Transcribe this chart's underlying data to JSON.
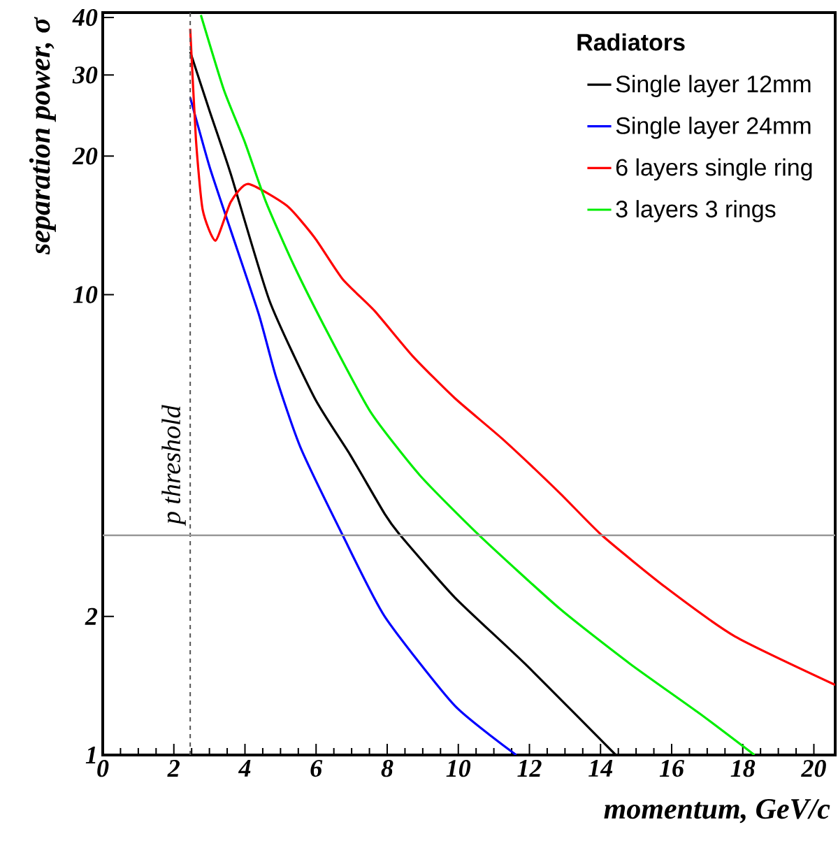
{
  "chart_data": {
    "type": "line",
    "xlabel": "momentum, GeV/c",
    "ylabel": "separation power, σ",
    "legend_title": "Radiators",
    "log": "y",
    "xlim": [
      0,
      20.6
    ],
    "ylim": [
      1,
      41
    ],
    "xticks": [
      0,
      2,
      4,
      6,
      8,
      10,
      12,
      14,
      16,
      18,
      20
    ],
    "yticks": [
      1,
      2,
      10,
      20,
      30,
      40
    ],
    "grid": false,
    "legend": "top right",
    "marker": "none",
    "line_style": "solid",
    "series": [
      {
        "name": "Single layer 12mm",
        "color": "#000000",
        "x": [
          2.46,
          3.01,
          3.6,
          4.69,
          5.96,
          6.95,
          7.93,
          8.37,
          9.9,
          11.87,
          14.43
        ],
        "values": [
          33.7,
          25,
          18.3,
          9.7,
          5.96,
          4.5,
          3.34,
          3.0,
          2.2,
          1.58,
          1.0
        ]
      },
      {
        "name": "Single layer 24mm",
        "color": "#0000ff",
        "x": [
          2.46,
          3.01,
          3.6,
          4.39,
          4.88,
          5.56,
          6.75,
          7.93,
          9.9,
          11.63
        ],
        "values": [
          26.8,
          18.9,
          13.8,
          9.06,
          6.6,
          4.66,
          3.0,
          2.0,
          1.28,
          1.0
        ]
      },
      {
        "name": "6 layers single ring",
        "color": "#ff0000",
        "x": [
          2.46,
          2.62,
          2.81,
          3.17,
          3.6,
          4.09,
          5.18,
          5.96,
          6.75,
          7.64,
          8.72,
          9.9,
          11.28,
          12.85,
          14.04,
          15.81,
          17.78,
          20.6
        ],
        "values": [
          37.8,
          21.8,
          15.3,
          13.1,
          15.9,
          17.4,
          15.6,
          13.3,
          10.8,
          9.23,
          7.35,
          5.96,
          4.83,
          3.71,
          3.0,
          2.32,
          1.81,
          1.42
        ]
      },
      {
        "name": "3 layers 3 rings",
        "color": "#00ee00",
        "x": [
          2.76,
          3.41,
          4.0,
          4.59,
          5.37,
          6.36,
          7.54,
          8.92,
          10.59,
          12.85,
          14.82,
          16.79,
          18.33
        ],
        "values": [
          40.5,
          27.8,
          21.4,
          15.9,
          11.6,
          8.17,
          5.55,
          4.05,
          3.0,
          2.08,
          1.58,
          1.23,
          1.0
        ]
      }
    ],
    "ref_lines": [
      {
        "axis": "x",
        "value": 2.46,
        "label": "p threshold",
        "color": "#555555",
        "line_style": "dashed"
      },
      {
        "axis": "y",
        "value": 3,
        "color": "#999999",
        "line_style": "solid"
      }
    ]
  }
}
